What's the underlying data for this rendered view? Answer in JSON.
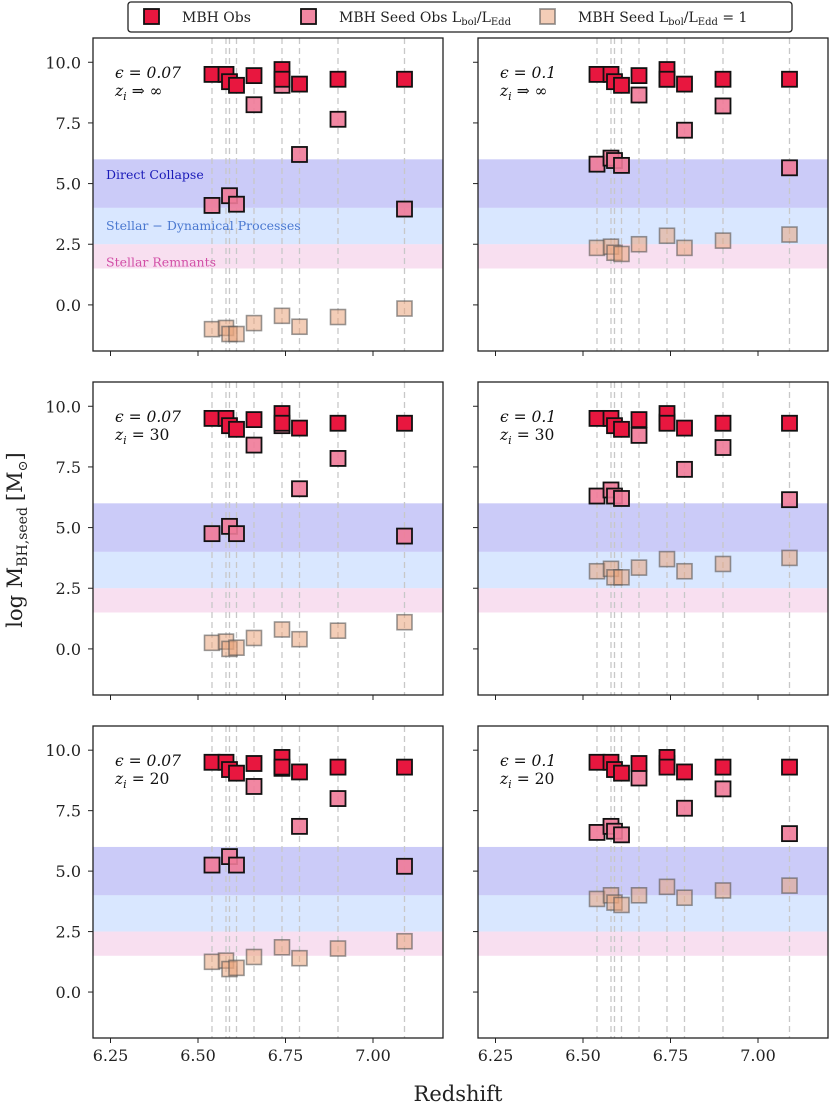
{
  "chart_data": {
    "type": "scatter",
    "xlabel": "Redshift",
    "ylabel": "log M_BH,seed [M☉]",
    "ylabel_main": "log M",
    "ylabel_sub": "BH,seed",
    "ylabel_unit": "[M",
    "ylabel_unit_close": "]",
    "xlim": [
      6.2,
      7.2
    ],
    "ylim": [
      -1.9,
      11.0
    ],
    "xticks": [
      6.25,
      6.5,
      6.75,
      7.0
    ],
    "xtick_labels": [
      "6.25",
      "6.50",
      "6.75",
      "7.00"
    ],
    "yticks": [
      0.0,
      2.5,
      5.0,
      7.5,
      10.0
    ],
    "ytick_labels": [
      "0.0",
      "2.5",
      "5.0",
      "7.5",
      "10.0"
    ],
    "redshift_guides": [
      6.54,
      6.58,
      6.59,
      6.61,
      6.66,
      6.74,
      6.79,
      6.9,
      7.09
    ],
    "bands": [
      {
        "name": "Direct Collapse",
        "range": [
          4.0,
          6.0
        ],
        "color": "#8c8cf0",
        "label_color": "#1a1ab8"
      },
      {
        "name": "Stellar − Dynamical Processes",
        "range": [
          2.5,
          4.0
        ],
        "color": "#b9d3ff",
        "label_color": "#4a78d0"
      },
      {
        "name": "Stellar Remnants",
        "range": [
          1.5,
          2.5
        ],
        "color": "#f2c4e4",
        "label_color": "#d24fa7"
      }
    ],
    "band_labels": [
      "Direct Collapse",
      "Stellar − Dynamical Processes",
      "Stellar Remnants"
    ],
    "legend": {
      "position": "top-center",
      "entries": [
        {
          "label": "MBH Obs",
          "label_main": "MBH Obs",
          "label_sub1": "",
          "label_sub2": "",
          "label_tail": "",
          "series": "obs"
        },
        {
          "label": "MBH Seed Obs L_bol/L_Edd",
          "label_main": "MBH Seed Obs L",
          "label_sub1": "bol",
          "label_sub2": "Edd",
          "label_tail": "",
          "series": "seed_obs"
        },
        {
          "label": "MBH Seed L_bol/L_Edd = 1",
          "label_main": "MBH Seed L",
          "label_sub1": "bol",
          "label_sub2": "Edd",
          "label_tail": " = 1",
          "series": "seed_edd"
        }
      ]
    },
    "series_styles": {
      "obs": {
        "fill": "#e8173f",
        "opacity": 1.0,
        "stroke": "#111111"
      },
      "seed_obs": {
        "fill": "#f07a98",
        "opacity": 0.9,
        "stroke": "#111111"
      },
      "seed_edd": {
        "fill": "#e9a47c",
        "opacity": 0.55,
        "stroke": "#555555"
      }
    },
    "obs_x": [
      6.54,
      6.58,
      6.59,
      6.61,
      6.66,
      6.74,
      6.74,
      6.79,
      6.9,
      7.09
    ],
    "obs_y": [
      9.5,
      9.5,
      9.2,
      9.05,
      9.45,
      9.7,
      9.3,
      9.1,
      9.3,
      9.3
    ],
    "panels": [
      {
        "epsilon": "ϵ = 0.07",
        "z_init": "z_i ⇒ ∞",
        "eps_text": "ϵ = 0.07",
        "zi_text": "⇒ ∞",
        "show_band_labels": true,
        "seed_obs_x": [
          6.54,
          6.59,
          6.61,
          6.66,
          6.74,
          6.79,
          6.9,
          7.09
        ],
        "seed_obs_y": [
          4.1,
          4.5,
          4.15,
          8.25,
          9.05,
          6.2,
          7.65,
          3.95
        ],
        "seed_edd_x": [
          6.54,
          6.58,
          6.59,
          6.61,
          6.66,
          6.74,
          6.79,
          6.9,
          7.09
        ],
        "seed_edd_y": [
          -1.0,
          -0.95,
          -1.2,
          -1.2,
          -0.75,
          -0.45,
          -0.9,
          -0.5,
          -0.15
        ]
      },
      {
        "epsilon": "ϵ = 0.1",
        "z_init": "z_i ⇒ ∞",
        "eps_text": "ϵ = 0.1",
        "zi_text": "⇒ ∞",
        "show_band_labels": false,
        "seed_obs_x": [
          6.54,
          6.58,
          6.59,
          6.61,
          6.66,
          6.74,
          6.79,
          6.9,
          7.09
        ],
        "seed_obs_y": [
          5.8,
          6.05,
          5.95,
          5.75,
          8.65,
          9.3,
          7.2,
          8.2,
          5.65
        ],
        "seed_edd_x": [
          6.54,
          6.58,
          6.59,
          6.61,
          6.66,
          6.74,
          6.79,
          6.9,
          7.09
        ],
        "seed_edd_y": [
          2.35,
          2.4,
          2.15,
          2.1,
          2.5,
          2.85,
          2.35,
          2.65,
          2.9
        ]
      },
      {
        "epsilon": "ϵ = 0.07",
        "z_init": "z_i = 30",
        "eps_text": "ϵ = 0.07",
        "zi_text": "= 30",
        "show_band_labels": false,
        "seed_obs_x": [
          6.54,
          6.59,
          6.61,
          6.66,
          6.74,
          6.79,
          6.9,
          7.09
        ],
        "seed_obs_y": [
          4.75,
          5.05,
          4.75,
          8.4,
          9.2,
          6.6,
          7.85,
          4.65
        ],
        "seed_edd_x": [
          6.54,
          6.58,
          6.59,
          6.61,
          6.66,
          6.74,
          6.79,
          6.9,
          7.09
        ],
        "seed_edd_y": [
          0.25,
          0.3,
          0.0,
          0.05,
          0.45,
          0.8,
          0.4,
          0.75,
          1.1
        ]
      },
      {
        "epsilon": "ϵ = 0.1",
        "z_init": "z_i = 30",
        "eps_text": "ϵ = 0.1",
        "zi_text": "= 30",
        "show_band_labels": false,
        "seed_obs_x": [
          6.54,
          6.58,
          6.59,
          6.61,
          6.66,
          6.74,
          6.79,
          6.9,
          7.09
        ],
        "seed_obs_y": [
          6.3,
          6.55,
          6.3,
          6.2,
          8.8,
          9.35,
          7.4,
          8.3,
          6.15
        ],
        "seed_edd_x": [
          6.54,
          6.58,
          6.59,
          6.61,
          6.66,
          6.74,
          6.79,
          6.9,
          7.09
        ],
        "seed_edd_y": [
          3.2,
          3.3,
          2.95,
          2.95,
          3.35,
          3.7,
          3.2,
          3.5,
          3.75
        ]
      },
      {
        "epsilon": "ϵ = 0.07",
        "z_init": "z_i = 20",
        "eps_text": "ϵ = 0.07",
        "zi_text": "= 20",
        "show_band_labels": false,
        "seed_obs_x": [
          6.54,
          6.59,
          6.61,
          6.66,
          6.74,
          6.79,
          6.9,
          7.09
        ],
        "seed_obs_y": [
          5.25,
          5.6,
          5.25,
          8.5,
          9.25,
          6.85,
          8.0,
          5.2
        ],
        "seed_edd_x": [
          6.54,
          6.58,
          6.59,
          6.61,
          6.66,
          6.74,
          6.79,
          6.9,
          7.09
        ],
        "seed_edd_y": [
          1.25,
          1.3,
          0.95,
          1.0,
          1.45,
          1.85,
          1.4,
          1.8,
          2.1
        ]
      },
      {
        "epsilon": "ϵ = 0.1",
        "z_init": "z_i = 20",
        "eps_text": "ϵ = 0.1",
        "zi_text": "= 20",
        "show_band_labels": false,
        "seed_obs_x": [
          6.54,
          6.58,
          6.59,
          6.61,
          6.66,
          6.74,
          6.79,
          6.9,
          7.09
        ],
        "seed_obs_y": [
          6.6,
          6.85,
          6.65,
          6.5,
          8.85,
          9.45,
          7.6,
          8.4,
          6.55
        ],
        "seed_edd_x": [
          6.54,
          6.58,
          6.59,
          6.61,
          6.66,
          6.74,
          6.79,
          6.9,
          7.09
        ],
        "seed_edd_y": [
          3.85,
          4.0,
          3.7,
          3.6,
          4.0,
          4.35,
          3.9,
          4.2,
          4.4
        ]
      }
    ]
  }
}
